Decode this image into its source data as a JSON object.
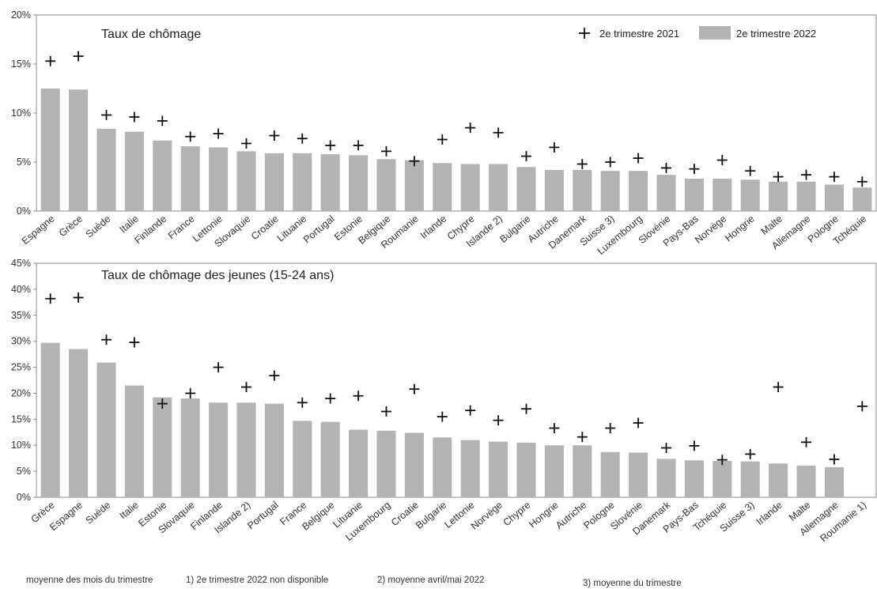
{
  "footnotes": {
    "moyenne": "moyenne des mois du trimestre",
    "n1": "1) 2e trimestre 2022 non disponible",
    "n2": "2) moyenne avril/mai 2022",
    "n3": "3) moyenne du trimestre"
  },
  "legend": {
    "marker_label": "2e trimestre 2021",
    "bar_label": "2e trimestre 2022",
    "bar_color": "#b3b3b3",
    "marker_color": "#111111"
  },
  "chart_data": [
    {
      "type": "bar",
      "title": "Taux de chômage",
      "ylim": [
        0,
        20
      ],
      "yticks": [
        "0%",
        "5%",
        "10%",
        "15%",
        "20%"
      ],
      "grid": false,
      "legend_position": "top-right",
      "categories": [
        "Espagne",
        "Grèce",
        "Suède",
        "Italie",
        "Finlande",
        "France",
        "Lettonie",
        "Slovaquie",
        "Croatie",
        "Lituanie",
        "Portugal",
        "Estonie",
        "Belgique",
        "Roumanie",
        "Irlande",
        "Chypre",
        "Islande 2)",
        "Bulgarie",
        "Autriche",
        "Danemark",
        "Suisse 3)",
        "Luxembourg",
        "Slovénie",
        "Pays-Bas",
        "Norvège",
        "Hongrie",
        "Malte",
        "Allemagne",
        "Pologne",
        "Tchéquie"
      ],
      "series": [
        {
          "name": "2e trimestre 2022",
          "kind": "bar",
          "values": [
            12.5,
            12.4,
            8.4,
            8.1,
            7.2,
            6.6,
            6.5,
            6.1,
            5.9,
            5.9,
            5.8,
            5.7,
            5.3,
            5.2,
            4.9,
            4.8,
            4.8,
            4.5,
            4.2,
            4.2,
            4.1,
            4.1,
            3.7,
            3.3,
            3.3,
            3.2,
            3.0,
            3.0,
            2.7,
            2.4
          ]
        },
        {
          "name": "2e trimestre 2021",
          "kind": "marker",
          "values": [
            15.3,
            15.8,
            9.8,
            9.6,
            9.2,
            7.6,
            7.9,
            6.9,
            7.7,
            7.4,
            6.7,
            6.7,
            6.1,
            5.1,
            7.3,
            8.5,
            8.0,
            5.6,
            6.5,
            4.8,
            5.0,
            5.4,
            4.4,
            4.3,
            5.2,
            4.1,
            3.5,
            3.7,
            3.5,
            3.0
          ]
        }
      ]
    },
    {
      "type": "bar",
      "title": "Taux de chômage des jeunes (15-24 ans)",
      "ylim": [
        0,
        45
      ],
      "yticks": [
        "0%",
        "5%",
        "10%",
        "15%",
        "20%",
        "25%",
        "30%",
        "35%",
        "40%",
        "45%"
      ],
      "grid": false,
      "categories": [
        "Grèce",
        "Espagne",
        "Suède",
        "Italie",
        "Estonie",
        "Slovaquie",
        "Finlande",
        "Islande 2)",
        "Portugal",
        "France",
        "Belgique",
        "Lituanie",
        "Luxembourg",
        "Croatie",
        "Bulgarie",
        "Lettonie",
        "Norvège",
        "Chypre",
        "Hongrie",
        "Autriche",
        "Pologne",
        "Slovénie",
        "Danemark",
        "Pays-Bas",
        "Tchéquie",
        "Suisse 3)",
        "Irlande",
        "Malte",
        "Allemagne",
        "Roumanie 1)"
      ],
      "series": [
        {
          "name": "2e trimestre 2022",
          "kind": "bar",
          "values": [
            29.7,
            28.5,
            25.9,
            21.5,
            19.2,
            19.0,
            18.2,
            18.2,
            18.0,
            14.7,
            14.5,
            13.0,
            12.8,
            12.4,
            11.5,
            11.0,
            10.7,
            10.5,
            10.0,
            10.0,
            8.7,
            8.6,
            7.4,
            7.1,
            7.0,
            6.9,
            6.5,
            6.1,
            5.8,
            null
          ]
        },
        {
          "name": "2e trimestre 2021",
          "kind": "marker",
          "values": [
            38.2,
            38.4,
            30.3,
            29.8,
            18.0,
            20.0,
            25.0,
            21.2,
            23.4,
            18.2,
            19.0,
            19.5,
            16.5,
            20.8,
            15.5,
            16.7,
            14.8,
            17.0,
            13.3,
            11.6,
            13.3,
            14.3,
            9.5,
            9.9,
            7.2,
            8.3,
            21.2,
            10.6,
            7.3,
            17.5
          ]
        }
      ]
    }
  ]
}
